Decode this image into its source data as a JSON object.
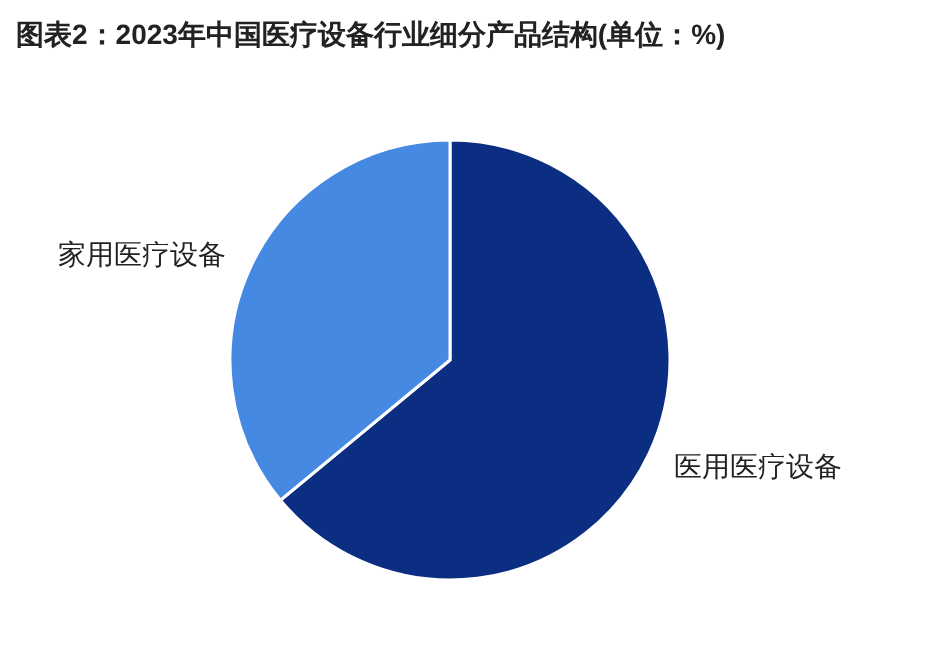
{
  "chart_data": {
    "type": "pie",
    "title": "图表2：2023年中国医疗设备行业细分产品结构(单位：%)",
    "categories": [
      "医用医疗设备",
      "家用医疗设备"
    ],
    "values": [
      64,
      36
    ],
    "colors": [
      "#0c2e82",
      "#4589e3"
    ]
  }
}
